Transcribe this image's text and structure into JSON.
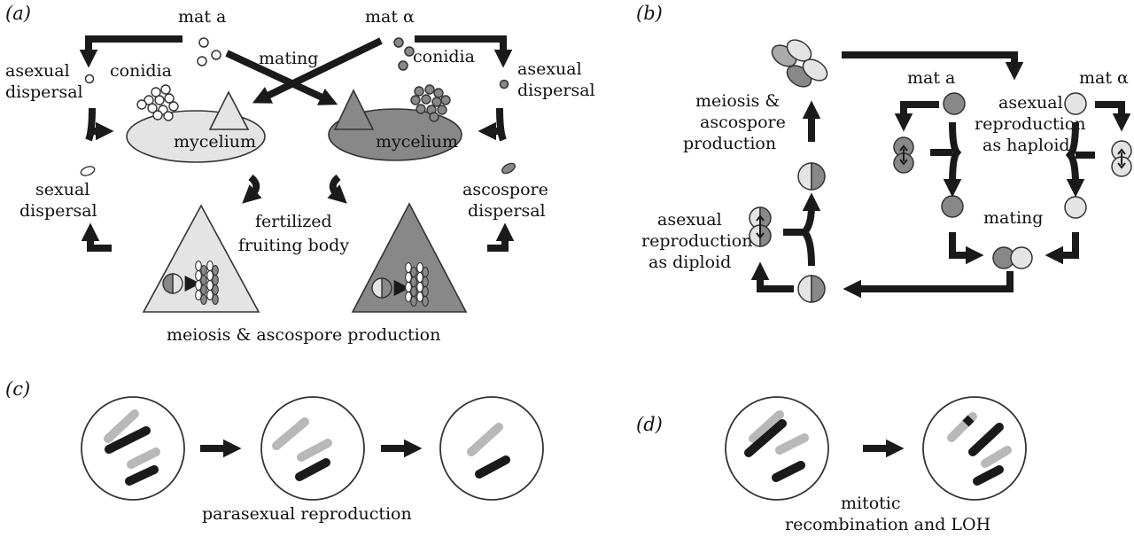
{
  "panels": {
    "a": "(a)",
    "b": "(b)",
    "c": "(c)",
    "d": "(d)"
  },
  "a": {
    "mat_a": "mat a",
    "mat_alpha": "mat α",
    "mating": "mating",
    "conidia_left": "conidia",
    "conidia_right": "conidia",
    "asexual_left": [
      "asexual",
      "dispersal"
    ],
    "asexual_right": [
      "asexual",
      "dispersal"
    ],
    "mycelium_left": "mycelium",
    "mycelium_right": "mycelium",
    "sexual_dispersal": [
      "sexual",
      "dispersal"
    ],
    "ascospore_dispersal": [
      "ascospore",
      "dispersal"
    ],
    "fertilized": [
      "fertilized",
      "fruiting body"
    ],
    "meiosis": "meiosis & ascospore production"
  },
  "b": {
    "meiosis": [
      "meiosis &",
      "ascospore",
      "production"
    ],
    "mat_a": "mat a",
    "mat_alpha": "mat α",
    "asexual_haploid": [
      "asexual",
      "reproduction",
      "as haploid"
    ],
    "mating": "mating",
    "asexual_diploid": [
      "asexual",
      "reproduction",
      "as diploid"
    ]
  },
  "c": {
    "caption": "parasexual reproduction"
  },
  "d": {
    "caption": [
      "mitotic",
      "recombination and LOH"
    ]
  },
  "colors": {
    "light": "#e4e4e4",
    "dark": "#888888",
    "arrow": "#1a1a1a",
    "chrom_light": "#b8b8b8",
    "chrom_dark": "#1a1a1a"
  }
}
